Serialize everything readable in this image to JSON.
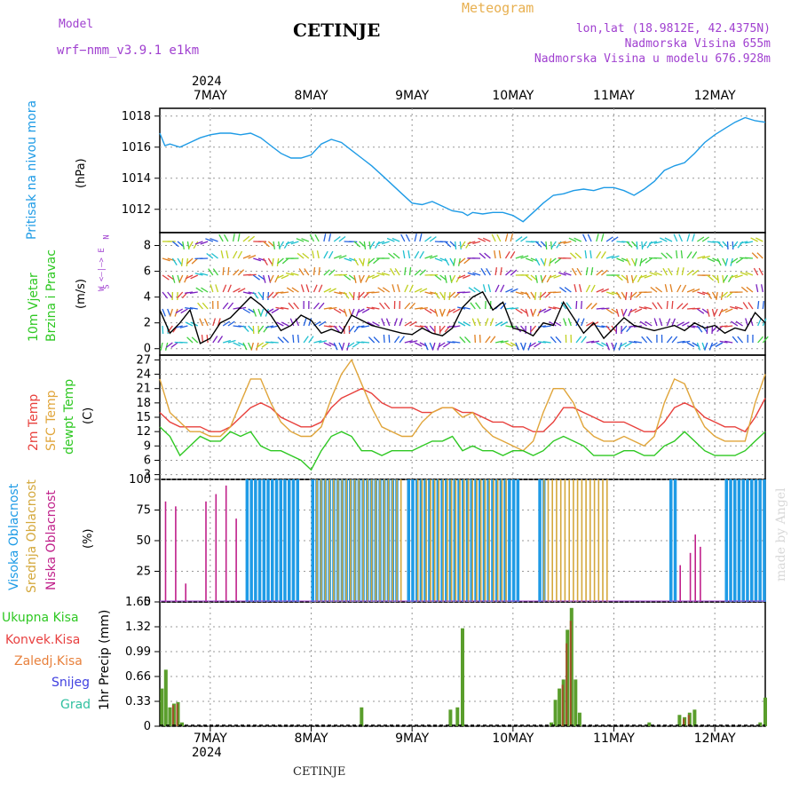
{
  "header": {
    "model_label": "Model",
    "model_name": "wrf−nmm_v3.9.1 e1km",
    "title": "CETINJE",
    "meteogram": "Meteogram",
    "lonlat": "lon,lat (18.9812E, 42.4375N)",
    "altitude": "Nadmorska Visina 655m",
    "model_altitude": "Nadmorska Visina u modelu 676.928m",
    "year_top": "2024",
    "year_bottom": "2024",
    "footer": "CETINJE",
    "watermark": "made by Angel"
  },
  "colors": {
    "pressure": "#1e9be6",
    "temp2m": "#e8403c",
    "sfc": "#e0a53a",
    "dew": "#2ec822",
    "high_cloud": "#1e9be6",
    "mid_cloud": "#d4a83c",
    "low_cloud": "#c0208a",
    "precip_total": "#5a9e2c",
    "precip_conv": "#e84040",
    "precip_frozen": "#e8803c",
    "snow": "#4040e0",
    "hail": "#30c0a0",
    "header_purple": "#a040d0",
    "header_orange": "#e8b050"
  },
  "axis_days": [
    "7MAY",
    "8MAY",
    "9MAY",
    "10MAY",
    "11MAY",
    "12MAY"
  ],
  "panel_labels": {
    "pressure": [
      "Pritisak na nivou mora",
      "(hPa)"
    ],
    "wind": [
      "10m Vjetar",
      "Brzina i Pravac",
      "(m/s)"
    ],
    "wind_compass": [
      "N",
      "W  <—|—>  E",
      "S"
    ],
    "temp": [
      "2m Temp",
      "SFC Temp",
      "dewpt Temp",
      "(C)"
    ],
    "cloud": [
      "Visoka Oblacnost",
      "Srednja Oblacnost",
      "Niska Oblacnost",
      "(%)"
    ],
    "precip": [
      "Ukupna  Kisa",
      "Konvek.Kisa",
      "Zaledj.Kisa",
      "Snijeg",
      "Grad",
      "1hr Precip (mm)"
    ]
  },
  "chart_data": [
    {
      "type": "line",
      "title": "",
      "ylabel": "Pritisak na nivou mora (hPa)",
      "x_unit": "days from 6 MAY 2024 00:00",
      "ylim": [
        1010.5,
        1018.5
      ],
      "yticks": [
        1012,
        1014,
        1016,
        1018
      ],
      "series": [
        {
          "name": "Pritisak na nivou mora",
          "x": [
            0.5,
            0.55,
            0.6,
            0.7,
            0.8,
            0.9,
            1.0,
            1.1,
            1.2,
            1.3,
            1.4,
            1.5,
            1.6,
            1.7,
            1.8,
            1.9,
            2.0,
            2.1,
            2.2,
            2.3,
            2.4,
            2.5,
            2.6,
            2.7,
            2.8,
            2.9,
            3.0,
            3.1,
            3.2,
            3.3,
            3.4,
            3.5,
            3.55,
            3.6,
            3.7,
            3.8,
            3.9,
            4.0,
            4.1,
            4.2,
            4.3,
            4.4,
            4.5,
            4.6,
            4.7,
            4.8,
            4.9,
            5.0,
            5.1,
            5.2,
            5.3,
            5.4,
            5.5,
            5.6,
            5.7,
            5.8,
            5.9,
            6.0,
            6.1,
            6.2,
            6.3,
            6.4,
            6.5
          ],
          "y": [
            1016.9,
            1016.1,
            1016.2,
            1016.0,
            1016.3,
            1016.6,
            1016.8,
            1016.9,
            1016.9,
            1016.8,
            1016.9,
            1016.6,
            1016.1,
            1015.6,
            1015.3,
            1015.3,
            1015.5,
            1016.2,
            1016.5,
            1016.3,
            1015.8,
            1015.3,
            1014.8,
            1014.2,
            1013.6,
            1013.0,
            1012.4,
            1012.3,
            1012.5,
            1012.2,
            1011.9,
            1011.8,
            1011.6,
            1011.8,
            1011.7,
            1011.8,
            1011.8,
            1011.6,
            1011.2,
            1011.8,
            1012.4,
            1012.9,
            1013.0,
            1013.2,
            1013.3,
            1013.2,
            1013.4,
            1013.4,
            1013.2,
            1012.9,
            1013.3,
            1013.8,
            1014.5,
            1014.8,
            1015.0,
            1015.6,
            1016.3,
            1016.8,
            1017.2,
            1017.6,
            1017.9,
            1017.7,
            1017.6
          ]
        }
      ]
    },
    {
      "type": "line",
      "title": "",
      "ylabel": "10m Vjetar Brzina i Pravac (m/s)",
      "x_unit": "days from 6 MAY 2024 00:00",
      "ylim": [
        -0.5,
        9
      ],
      "yticks": [
        0,
        2,
        4,
        6,
        8
      ],
      "series": [
        {
          "name": "Brzina",
          "x": [
            0.5,
            0.6,
            0.7,
            0.8,
            0.9,
            1.0,
            1.1,
            1.2,
            1.3,
            1.4,
            1.5,
            1.6,
            1.7,
            1.8,
            1.9,
            2.0,
            2.1,
            2.2,
            2.3,
            2.4,
            2.5,
            2.6,
            2.7,
            2.8,
            2.9,
            3.0,
            3.1,
            3.2,
            3.3,
            3.4,
            3.5,
            3.6,
            3.7,
            3.8,
            3.9,
            4.0,
            4.1,
            4.2,
            4.3,
            4.4,
            4.5,
            4.6,
            4.7,
            4.8,
            4.9,
            5.0,
            5.1,
            5.2,
            5.3,
            5.4,
            5.5,
            5.6,
            5.7,
            5.8,
            5.9,
            6.0,
            6.1,
            6.2,
            6.3,
            6.4,
            6.5
          ],
          "y": [
            3.0,
            1.2,
            2.0,
            3.0,
            0.4,
            0.8,
            2.0,
            2.4,
            3.2,
            4.0,
            3.4,
            2.6,
            1.4,
            1.8,
            2.6,
            2.2,
            1.2,
            1.5,
            1.2,
            2.6,
            2.2,
            1.8,
            1.6,
            1.4,
            1.2,
            1.1,
            1.6,
            1.2,
            1.0,
            1.6,
            3.2,
            4.0,
            4.4,
            3.0,
            3.6,
            1.6,
            1.4,
            1.0,
            2.0,
            1.8,
            3.6,
            2.4,
            1.2,
            2.0,
            0.8,
            1.6,
            2.4,
            1.8,
            1.6,
            1.4,
            1.6,
            1.8,
            1.4,
            2.0,
            1.6,
            1.8,
            1.2,
            1.6,
            1.4,
            2.8,
            2.0
          ]
        }
      ]
    },
    {
      "type": "line",
      "title": "",
      "ylabel": "(C)",
      "x_unit": "days from 6 MAY 2024 00:00",
      "ylim": [
        2,
        28
      ],
      "yticks": [
        3,
        6,
        9,
        12,
        15,
        18,
        21,
        24,
        27
      ],
      "series": [
        {
          "name": "2m Temp",
          "x": [
            0.5,
            0.6,
            0.7,
            0.8,
            0.9,
            1.0,
            1.1,
            1.2,
            1.3,
            1.4,
            1.5,
            1.6,
            1.7,
            1.8,
            1.9,
            2.0,
            2.1,
            2.2,
            2.3,
            2.4,
            2.5,
            2.6,
            2.7,
            2.8,
            2.9,
            3.0,
            3.1,
            3.2,
            3.3,
            3.4,
            3.5,
            3.6,
            3.7,
            3.8,
            3.9,
            4.0,
            4.1,
            4.2,
            4.3,
            4.4,
            4.5,
            4.6,
            4.7,
            4.8,
            4.9,
            5.0,
            5.1,
            5.2,
            5.3,
            5.4,
            5.5,
            5.6,
            5.7,
            5.8,
            5.9,
            6.0,
            6.1,
            6.2,
            6.3,
            6.4,
            6.5
          ],
          "y": [
            16,
            14,
            13,
            13,
            13,
            12,
            12,
            13,
            15,
            17,
            18,
            17,
            15,
            14,
            13,
            13,
            14,
            17,
            19,
            20,
            21,
            20,
            18,
            17,
            17,
            17,
            16,
            16,
            17,
            17,
            16,
            16,
            15,
            14,
            14,
            13,
            13,
            12,
            12,
            14,
            17,
            17,
            16,
            15,
            14,
            14,
            14,
            13,
            12,
            12,
            14,
            17,
            18,
            17,
            15,
            14,
            13,
            13,
            12,
            15,
            19
          ]
        },
        {
          "name": "SFC Temp",
          "x": [
            0.5,
            0.6,
            0.7,
            0.8,
            0.9,
            1.0,
            1.1,
            1.2,
            1.3,
            1.4,
            1.5,
            1.6,
            1.7,
            1.8,
            1.9,
            2.0,
            2.1,
            2.2,
            2.3,
            2.4,
            2.5,
            2.6,
            2.7,
            2.8,
            2.9,
            3.0,
            3.1,
            3.2,
            3.3,
            3.4,
            3.5,
            3.6,
            3.7,
            3.8,
            3.9,
            4.0,
            4.1,
            4.2,
            4.3,
            4.4,
            4.5,
            4.6,
            4.7,
            4.8,
            4.9,
            5.0,
            5.1,
            5.2,
            5.3,
            5.4,
            5.5,
            5.6,
            5.7,
            5.8,
            5.9,
            6.0,
            6.1,
            6.2,
            6.3,
            6.4,
            6.5
          ],
          "y": [
            23,
            16,
            14,
            12,
            12,
            11,
            11,
            13,
            18,
            23,
            23,
            18,
            14,
            12,
            11,
            11,
            13,
            19,
            24,
            27,
            22,
            17,
            13,
            12,
            11,
            11,
            14,
            16,
            17,
            17,
            15,
            16,
            13,
            11,
            10,
            9,
            8,
            10,
            16,
            21,
            21,
            18,
            13,
            11,
            10,
            10,
            11,
            10,
            9,
            11,
            18,
            23,
            22,
            17,
            13,
            11,
            10,
            10,
            10,
            18,
            24
          ]
        },
        {
          "name": "dewpt Temp",
          "x": [
            0.5,
            0.6,
            0.7,
            0.8,
            0.9,
            1.0,
            1.1,
            1.2,
            1.3,
            1.4,
            1.5,
            1.6,
            1.7,
            1.8,
            1.9,
            2.0,
            2.1,
            2.2,
            2.3,
            2.4,
            2.5,
            2.6,
            2.7,
            2.8,
            2.9,
            3.0,
            3.1,
            3.2,
            3.3,
            3.4,
            3.5,
            3.6,
            3.7,
            3.8,
            3.9,
            4.0,
            4.1,
            4.2,
            4.3,
            4.4,
            4.5,
            4.6,
            4.7,
            4.8,
            4.9,
            5.0,
            5.1,
            5.2,
            5.3,
            5.4,
            5.5,
            5.6,
            5.7,
            5.8,
            5.9,
            6.0,
            6.1,
            6.2,
            6.3,
            6.4,
            6.5
          ],
          "y": [
            13,
            11,
            7,
            9,
            11,
            10,
            10,
            12,
            11,
            12,
            9,
            8,
            8,
            7,
            6,
            4,
            8,
            11,
            12,
            11,
            8,
            8,
            7,
            8,
            8,
            8,
            9,
            10,
            10,
            11,
            8,
            9,
            8,
            8,
            7,
            8,
            8,
            7,
            8,
            10,
            11,
            10,
            9,
            7,
            7,
            7,
            8,
            8,
            7,
            7,
            9,
            10,
            12,
            10,
            8,
            7,
            7,
            7,
            8,
            10,
            12
          ]
        }
      ]
    },
    {
      "type": "bar",
      "title": "",
      "ylabel": "(%)",
      "x_unit": "days from 6 MAY 2024 00:00",
      "ylim": [
        0,
        100
      ],
      "yticks": [
        0,
        25,
        50,
        75,
        100
      ],
      "series": [
        {
          "name": "Visoka Oblacnost",
          "intervals": [
            [
              1.35,
              1.85
            ],
            [
              2.0,
              2.85
            ],
            [
              2.95,
              4.05
            ],
            [
              4.25,
              4.3
            ],
            [
              5.55,
              5.6
            ],
            [
              6.1,
              6.5
            ]
          ],
          "value": 100
        },
        {
          "name": "Srednja Oblacnost",
          "intervals": [
            [
              2.05,
              2.9
            ],
            [
              3.05,
              3.95
            ],
            [
              4.3,
              4.95
            ]
          ],
          "value": 100
        },
        {
          "name": "Niska Oblacnost",
          "x": [
            0.55,
            0.65,
            0.75,
            0.95,
            1.05,
            1.15,
            1.25,
            5.65,
            5.75,
            5.8,
            5.85
          ],
          "y": [
            82,
            78,
            15,
            82,
            88,
            95,
            68,
            30,
            40,
            55,
            45
          ]
        }
      ]
    },
    {
      "type": "bar",
      "title": "",
      "ylabel": "1hr Precip (mm)",
      "x_unit": "days from 6 MAY 2024 00:00",
      "ylim": [
        0,
        1.65
      ],
      "yticks": [
        0,
        0.33,
        0.66,
        0.99,
        1.32,
        1.65
      ],
      "series": [
        {
          "name": "Ukupna  Kisa",
          "x": [
            0.52,
            0.56,
            0.6,
            0.64,
            0.68,
            0.72,
            2.5,
            3.38,
            3.45,
            3.5,
            4.38,
            4.42,
            4.46,
            4.5,
            4.54,
            4.58,
            4.62,
            4.66,
            5.35,
            5.65,
            5.7,
            5.75,
            5.8,
            6.45,
            6.5
          ],
          "y": [
            0.5,
            0.75,
            0.25,
            0.3,
            0.32,
            0.05,
            0.25,
            0.22,
            0.25,
            1.3,
            0.05,
            0.35,
            0.5,
            0.62,
            1.28,
            1.57,
            0.62,
            0.18,
            0.05,
            0.15,
            0.12,
            0.18,
            0.22,
            0.05,
            0.38
          ]
        },
        {
          "name": "Konvek.Kisa",
          "x": [
            0.64,
            0.68,
            4.5,
            4.54,
            4.58,
            5.7,
            5.75
          ],
          "y": [
            0.28,
            0.3,
            0.55,
            1.1,
            1.4,
            0.1,
            0.15
          ]
        }
      ]
    }
  ]
}
